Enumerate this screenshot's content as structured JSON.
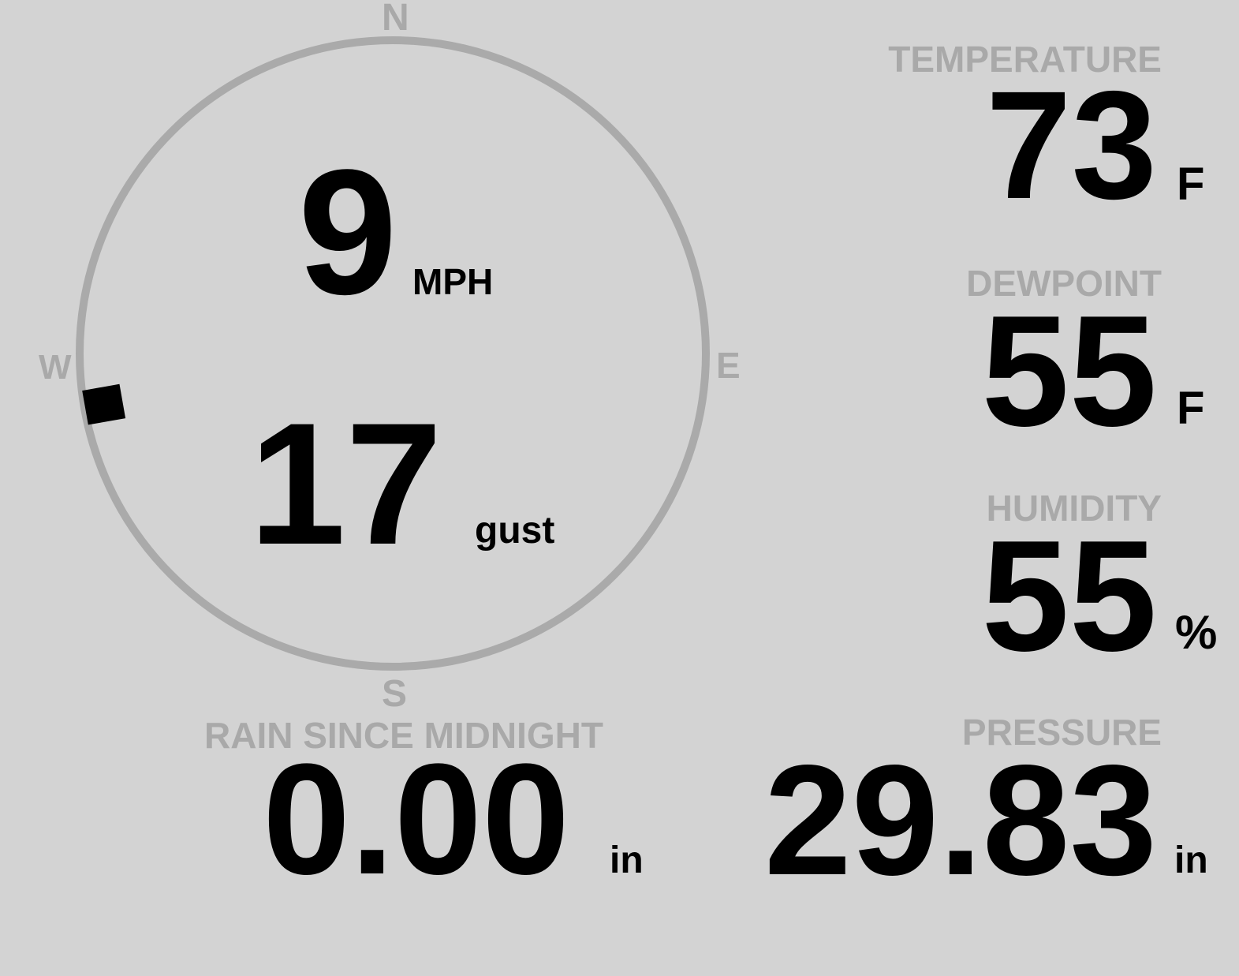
{
  "compass": {
    "north": "N",
    "east": "E",
    "south": "S",
    "west": "W",
    "wind_direction_deg": 260,
    "ring_color": "#aaaaaa"
  },
  "wind": {
    "speed": "9",
    "speed_unit": "MPH",
    "gust": "17",
    "gust_label": "gust"
  },
  "temperature": {
    "label": "TEMPERATURE",
    "value": "73",
    "unit": "F"
  },
  "dewpoint": {
    "label": "DEWPOINT",
    "value": "55",
    "unit": "F"
  },
  "humidity": {
    "label": "HUMIDITY",
    "value": "55",
    "unit": "%"
  },
  "rain": {
    "label": "RAIN SINCE MIDNIGHT",
    "value": "0.00",
    "unit": "in"
  },
  "pressure": {
    "label": "PRESSURE",
    "value": "29.83",
    "unit": "in"
  },
  "colors": {
    "background": "#d3d3d3",
    "label": "#a9a9a9",
    "value": "#000000"
  }
}
